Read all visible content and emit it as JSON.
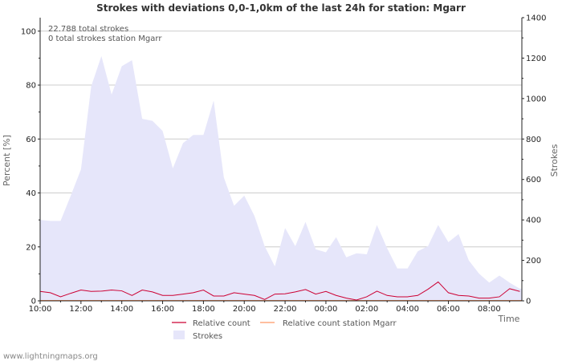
{
  "chart_data": {
    "type": "area",
    "title": "Strokes with deviations 0,0-1,0km of the last 24h for station: Mgarr",
    "ylabel_left": "Percent   [%]",
    "ylabel_right": "Strokes",
    "xlabel": "Time",
    "ylim_left": [
      0,
      105
    ],
    "ylim_right": [
      0,
      1400
    ],
    "yticks_left": [
      "0",
      "20",
      "40",
      "60",
      "80",
      "100"
    ],
    "yticks_right": [
      "0",
      "200",
      "400",
      "600",
      "800",
      "1000",
      "1200",
      "1400"
    ],
    "xticks": [
      "10:00",
      "12:00",
      "14:00",
      "16:00",
      "18:00",
      "20:00",
      "22:00",
      "00:00",
      "02:00",
      "04:00",
      "06:00",
      "08:00"
    ],
    "x_range_hours": [
      0,
      23.6
    ],
    "annotations": [
      "22.788 total strokes",
      "0 total strokes station Mgarr"
    ],
    "legend": {
      "relative_count": "Relative count",
      "relative_count_station": "Relative count station Mgarr",
      "strokes": "Strokes"
    },
    "colors": {
      "strokes_fill": "#e6e6fa",
      "relative_count": "#cc0033",
      "relative_count_station": "#ff9966",
      "grid": "#cccccc"
    },
    "series": [
      {
        "name": "Strokes",
        "axis": "right",
        "x_hours": [
          0,
          0.5,
          1,
          1.5,
          2,
          2.5,
          3,
          3.5,
          4,
          4.5,
          5,
          5.5,
          6,
          6.5,
          7,
          7.5,
          8,
          8.5,
          9,
          9.5,
          10,
          10.5,
          11,
          11.5,
          12,
          12.5,
          13,
          13.5,
          14,
          14.5,
          15,
          15.5,
          16,
          16.5,
          17,
          17.5,
          18,
          18.5,
          19,
          19.5,
          20,
          20.5,
          21,
          21.5,
          22,
          22.5,
          23,
          23.5
        ],
        "values": [
          400,
          395,
          395,
          520,
          650,
          1060,
          1210,
          1020,
          1160,
          1190,
          900,
          890,
          840,
          655,
          780,
          820,
          820,
          990,
          610,
          470,
          520,
          420,
          270,
          170,
          360,
          270,
          390,
          255,
          240,
          315,
          215,
          235,
          230,
          375,
          260,
          160,
          160,
          245,
          270,
          375,
          290,
          330,
          200,
          135,
          90,
          125,
          90,
          60
        ]
      },
      {
        "name": "Relative count",
        "axis": "left",
        "x_hours": [
          0,
          0.5,
          1,
          1.5,
          2,
          2.5,
          3,
          3.5,
          4,
          4.5,
          5,
          5.5,
          6,
          6.5,
          7,
          7.5,
          8,
          8.5,
          9,
          9.5,
          10,
          10.5,
          11,
          11.5,
          12,
          12.5,
          13,
          13.5,
          14,
          14.5,
          15,
          15.5,
          16,
          16.5,
          17,
          17.5,
          18,
          18.5,
          19,
          19.5,
          20,
          20.5,
          21,
          21.5,
          22,
          22.5,
          23,
          23.5
        ],
        "values": [
          3.5,
          3,
          1.5,
          2.8,
          4,
          3.5,
          3.6,
          4,
          3.7,
          2,
          4,
          3.3,
          2,
          2,
          2.5,
          3,
          4,
          1.8,
          1.8,
          3,
          2.5,
          2,
          0.5,
          2.5,
          2.6,
          3.3,
          4.2,
          2.5,
          3.5,
          2,
          1,
          0.3,
          1.5,
          3.6,
          2,
          1.5,
          1.5,
          2,
          4.3,
          7,
          3,
          2,
          1.8,
          1,
          1,
          1.5,
          4.5,
          3.5
        ]
      },
      {
        "name": "Relative count station Mgarr",
        "axis": "left",
        "x_hours": [
          0,
          23.6
        ],
        "values": [
          0,
          0
        ]
      }
    ]
  },
  "footer": {
    "credit": "www.lightningmaps.org"
  }
}
